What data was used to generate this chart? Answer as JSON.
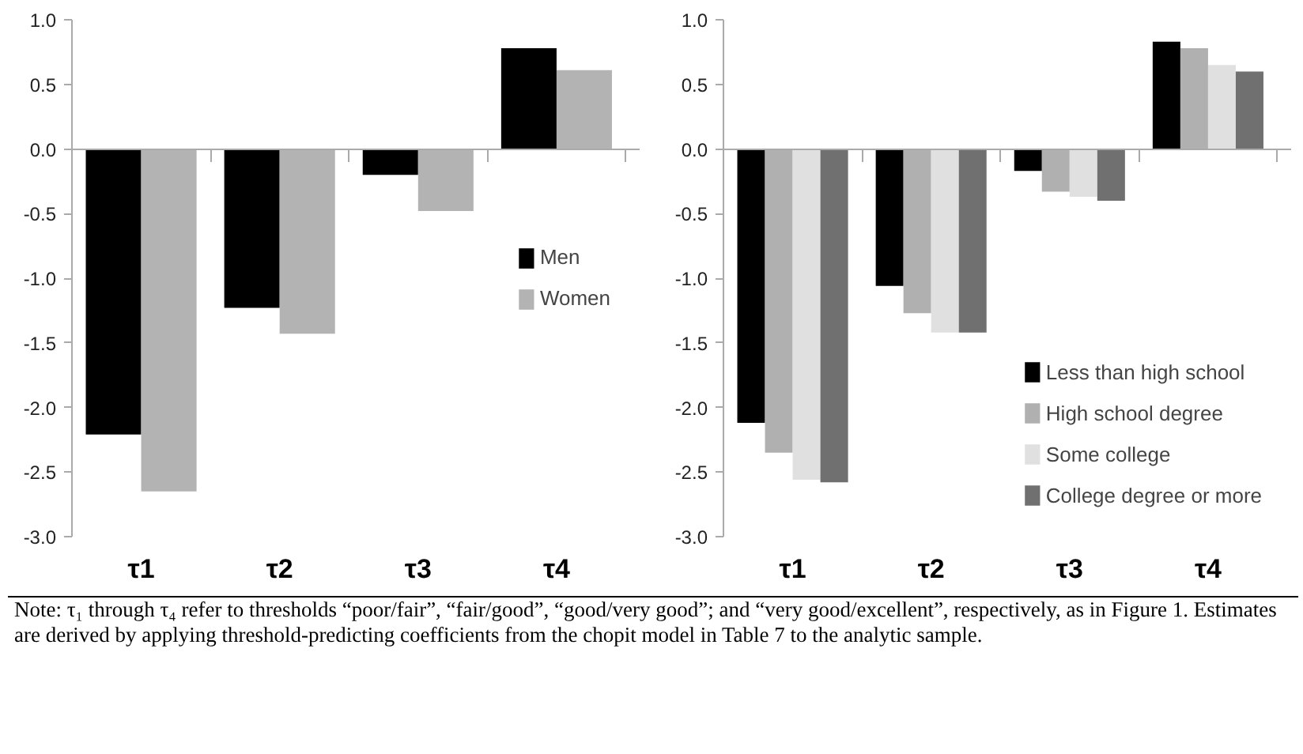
{
  "chart_data": [
    {
      "type": "bar",
      "categories": [
        "τ1",
        "τ2",
        "τ3",
        "τ4"
      ],
      "series": [
        {
          "name": "Men",
          "color": "#000000",
          "values": [
            -2.21,
            -1.23,
            -0.2,
            0.78
          ]
        },
        {
          "name": "Women",
          "color": "#b3b3b3",
          "values": [
            -2.65,
            -1.43,
            -0.48,
            0.61
          ]
        }
      ],
      "ylim": [
        -3.0,
        1.0
      ],
      "yticks": [
        {
          "value": -3,
          "label": "-3.0"
        },
        {
          "value": -2.5,
          "label": "-2.5"
        },
        {
          "value": -2,
          "label": "-2.0"
        },
        {
          "value": -1.5,
          "label": "-1.5"
        },
        {
          "value": -1,
          "label": "-1.0"
        },
        {
          "value": -0.5,
          "label": "-0.5"
        },
        {
          "value": 0,
          "label": "0.0"
        },
        {
          "value": 0.5,
          "label": "0.5"
        },
        {
          "value": 1,
          "label": "1.0"
        }
      ],
      "legend": "right",
      "annotations": [
        "Note: τ₁ through τ₄ refer to thresholds “poor/fair”, “fair/good”, “good/very good”; and “very good/excellent”, respectively, as in Figure 1. Estimates are derived by applying threshold-predicting coefficients from the chopit model in Table 7 to the analytic sample."
      ]
    },
    {
      "type": "bar",
      "categories": [
        "τ1",
        "τ2",
        "τ3",
        "τ4"
      ],
      "series": [
        {
          "name": "Less than high school",
          "color": "#000000",
          "values": [
            -2.12,
            -1.06,
            -0.17,
            0.83
          ]
        },
        {
          "name": "High school degree",
          "color": "#b0b0b0",
          "values": [
            -2.35,
            -1.27,
            -0.33,
            0.78
          ]
        },
        {
          "name": "Some college",
          "color": "#e0e0e0",
          "values": [
            -2.56,
            -1.42,
            -0.37,
            0.65
          ]
        },
        {
          "name": "College degree or more",
          "color": "#707070",
          "values": [
            -2.58,
            -1.42,
            -0.4,
            0.6
          ]
        }
      ],
      "ylim": [
        -3.0,
        1.0
      ],
      "yticks": [
        {
          "value": -3,
          "label": "-3.0"
        },
        {
          "value": -2.5,
          "label": "-2.5"
        },
        {
          "value": -2,
          "label": "-2.0"
        },
        {
          "value": -1.5,
          "label": "-1.5"
        },
        {
          "value": -1,
          "label": "-1.0"
        },
        {
          "value": -0.5,
          "label": "-0.5"
        },
        {
          "value": 0,
          "label": "0.0"
        },
        {
          "value": 0.5,
          "label": "0.5"
        },
        {
          "value": 1,
          "label": "1.0"
        }
      ],
      "legend": "bottom right"
    }
  ]
}
